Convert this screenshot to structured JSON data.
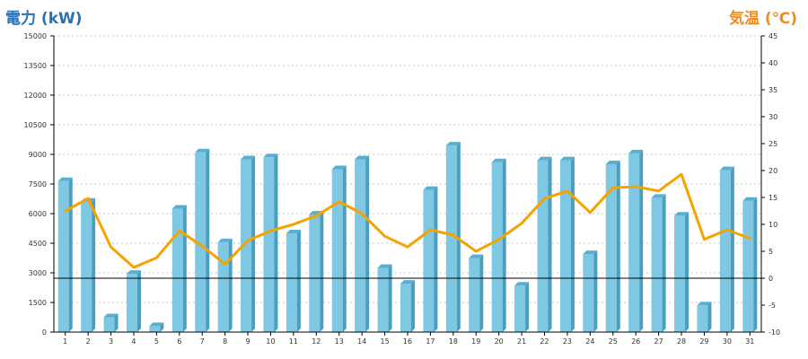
{
  "chart_data": {
    "type": "bar",
    "title": "",
    "ylabel": "電力 (kW)",
    "y2label": "気温 (℃)",
    "categories": [
      "1",
      "2",
      "3",
      "4",
      "5",
      "6",
      "7",
      "8",
      "9",
      "10",
      "11",
      "12",
      "13",
      "14",
      "15",
      "16",
      "17",
      "18",
      "19",
      "20",
      "21",
      "22",
      "23",
      "24",
      "25",
      "26",
      "27",
      "28",
      "29",
      "30",
      "31"
    ],
    "ylim": [
      0,
      15000
    ],
    "y2lim": [
      -10,
      45
    ],
    "y_ticks": [
      "0",
      "1500",
      "3000",
      "4500",
      "6000",
      "7500",
      "9000",
      "10500",
      "12000",
      "13500",
      "15000"
    ],
    "y2_ticks": [
      "-10",
      "-5",
      "0",
      "5",
      "10",
      "15",
      "20",
      "25",
      "30",
      "35",
      "40",
      "45"
    ],
    "grid": true,
    "reference_line": {
      "axis": "y2",
      "value": 0
    },
    "series": [
      {
        "name": "電力 (kW)",
        "type": "bar",
        "axis": "left",
        "color": "#7ec8e3",
        "values": [
          7650,
          6600,
          750,
          2950,
          300,
          6250,
          9100,
          4550,
          8750,
          8850,
          5000,
          5950,
          8250,
          8750,
          3250,
          2450,
          7200,
          9450,
          3750,
          8600,
          2350,
          8700,
          8700,
          3950,
          8500,
          9050,
          6800,
          5900,
          1350,
          8200,
          6650
        ]
      },
      {
        "name": "気温 (℃)",
        "type": "line",
        "axis": "right",
        "color": "#f5a300",
        "values": [
          12.5,
          14.8,
          5.8,
          2.0,
          3.8,
          8.8,
          6.0,
          2.6,
          7.0,
          8.8,
          10.0,
          11.6,
          14.2,
          12.0,
          7.8,
          5.8,
          9.0,
          8.0,
          5.0,
          7.2,
          10.2,
          14.8,
          16.2,
          12.2,
          16.8,
          17.0,
          16.2,
          19.3,
          7.2,
          9.0,
          7.4
        ]
      }
    ]
  },
  "colors": {
    "left_title": "#2a72b5",
    "right_title": "#f08c1e",
    "bar_front": "#7ec8e3",
    "bar_side": "#4a9ebf",
    "bar_top": "#5aafd0",
    "line": "#f5a300",
    "grid": "#b5b5b5",
    "zero_line": "#000000"
  }
}
